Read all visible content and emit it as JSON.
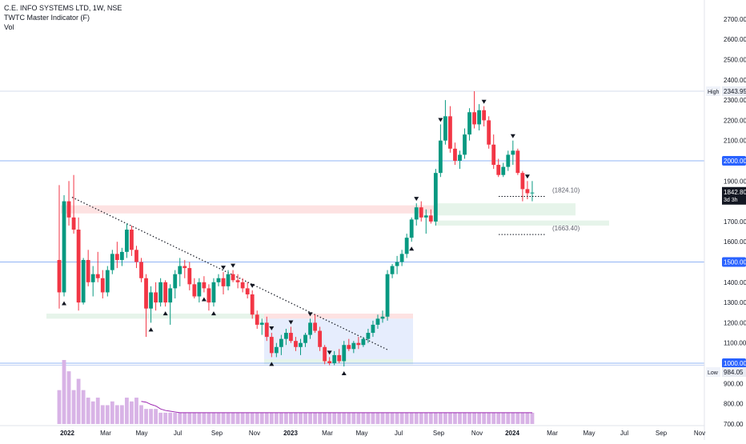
{
  "header": {
    "symbol_line": "C.E. INFO SYSTEMS LTD, 1W, NSE",
    "indicator": "TWTC Master Indicator (F)",
    "volume": "Vol"
  },
  "price_axis": {
    "ticks": [
      "2700.00",
      "2600.00",
      "2500.00",
      "2400.00",
      "2300.00",
      "2200.00",
      "2100.00",
      "1900.00",
      "1800.00",
      "1700.00",
      "1600.00",
      "1400.00",
      "1300.00",
      "1200.00",
      "1100.00",
      "900.00",
      "800.00",
      "700.00"
    ],
    "high_label": "High",
    "high_value": "2343.95",
    "low_label": "Low",
    "low_value": "984.05",
    "level_2000": "2000.00",
    "level_1500": "1500.00",
    "level_1000": "1000.00",
    "last_price": "1842.80",
    "countdown": "3d 3h"
  },
  "time_axis": {
    "labels": [
      "2022",
      "Mar",
      "May",
      "Jul",
      "Sep",
      "Nov",
      "2023",
      "Mar",
      "May",
      "Jul",
      "Sep",
      "Nov",
      "2024",
      "Mar",
      "May",
      "Jul",
      "Sep",
      "Nov"
    ]
  },
  "annotations": {
    "upper_target": "(1824.10)",
    "lower_target": "(1663.40)"
  },
  "colors": {
    "up": "#089981",
    "down": "#f23645",
    "volume": "#d8b3e6",
    "horizontal_level": "#2962ff",
    "support_zone": "#e6f4ea",
    "resistance_zone": "#fde2e2",
    "consolidation_box": "#e3ebfd"
  },
  "chart_data": {
    "type": "candlestick",
    "interval": "1W",
    "ylim": [
      700,
      2750
    ],
    "x_start": "2021-12-20",
    "candles": [
      {
        "o": 1510,
        "h": 1880,
        "l": 1270,
        "c": 1350
      },
      {
        "o": 1350,
        "h": 1830,
        "l": 1330,
        "c": 1800
      },
      {
        "o": 1800,
        "h": 1900,
        "l": 1680,
        "c": 1720
      },
      {
        "o": 1720,
        "h": 1930,
        "l": 1640,
        "c": 1660
      },
      {
        "o": 1660,
        "h": 1720,
        "l": 1260,
        "c": 1300
      },
      {
        "o": 1300,
        "h": 1520,
        "l": 1290,
        "c": 1510
      },
      {
        "o": 1510,
        "h": 1560,
        "l": 1380,
        "c": 1400
      },
      {
        "o": 1400,
        "h": 1480,
        "l": 1330,
        "c": 1440
      },
      {
        "o": 1440,
        "h": 1550,
        "l": 1400,
        "c": 1420
      },
      {
        "o": 1420,
        "h": 1460,
        "l": 1320,
        "c": 1350
      },
      {
        "o": 1350,
        "h": 1480,
        "l": 1330,
        "c": 1460
      },
      {
        "o": 1460,
        "h": 1560,
        "l": 1440,
        "c": 1540
      },
      {
        "o": 1540,
        "h": 1600,
        "l": 1470,
        "c": 1510
      },
      {
        "o": 1510,
        "h": 1570,
        "l": 1480,
        "c": 1550
      },
      {
        "o": 1550,
        "h": 1690,
        "l": 1520,
        "c": 1660
      },
      {
        "o": 1660,
        "h": 1680,
        "l": 1530,
        "c": 1560
      },
      {
        "o": 1560,
        "h": 1580,
        "l": 1470,
        "c": 1500
      },
      {
        "o": 1500,
        "h": 1520,
        "l": 1400,
        "c": 1420
      },
      {
        "o": 1420,
        "h": 1440,
        "l": 1130,
        "c": 1270
      },
      {
        "o": 1270,
        "h": 1380,
        "l": 1200,
        "c": 1350
      },
      {
        "o": 1350,
        "h": 1400,
        "l": 1260,
        "c": 1300
      },
      {
        "o": 1300,
        "h": 1420,
        "l": 1280,
        "c": 1400
      },
      {
        "o": 1400,
        "h": 1410,
        "l": 1280,
        "c": 1300
      },
      {
        "o": 1300,
        "h": 1390,
        "l": 1190,
        "c": 1370
      },
      {
        "o": 1370,
        "h": 1460,
        "l": 1320,
        "c": 1440
      },
      {
        "o": 1440,
        "h": 1520,
        "l": 1380,
        "c": 1480
      },
      {
        "o": 1480,
        "h": 1510,
        "l": 1420,
        "c": 1470
      },
      {
        "o": 1470,
        "h": 1500,
        "l": 1360,
        "c": 1390
      },
      {
        "o": 1390,
        "h": 1420,
        "l": 1320,
        "c": 1330
      },
      {
        "o": 1330,
        "h": 1420,
        "l": 1300,
        "c": 1400
      },
      {
        "o": 1400,
        "h": 1430,
        "l": 1350,
        "c": 1370
      },
      {
        "o": 1370,
        "h": 1390,
        "l": 1260,
        "c": 1300
      },
      {
        "o": 1300,
        "h": 1420,
        "l": 1280,
        "c": 1400
      },
      {
        "o": 1400,
        "h": 1440,
        "l": 1380,
        "c": 1420
      },
      {
        "o": 1420,
        "h": 1450,
        "l": 1340,
        "c": 1380
      },
      {
        "o": 1380,
        "h": 1460,
        "l": 1360,
        "c": 1440
      },
      {
        "o": 1440,
        "h": 1460,
        "l": 1400,
        "c": 1410
      },
      {
        "o": 1410,
        "h": 1440,
        "l": 1370,
        "c": 1400
      },
      {
        "o": 1400,
        "h": 1420,
        "l": 1350,
        "c": 1370
      },
      {
        "o": 1370,
        "h": 1400,
        "l": 1320,
        "c": 1340
      },
      {
        "o": 1340,
        "h": 1360,
        "l": 1220,
        "c": 1240
      },
      {
        "o": 1240,
        "h": 1260,
        "l": 1170,
        "c": 1190
      },
      {
        "o": 1190,
        "h": 1220,
        "l": 1140,
        "c": 1200
      },
      {
        "o": 1200,
        "h": 1230,
        "l": 1110,
        "c": 1130
      },
      {
        "o": 1130,
        "h": 1150,
        "l": 1030,
        "c": 1050
      },
      {
        "o": 1050,
        "h": 1100,
        "l": 1030,
        "c": 1080
      },
      {
        "o": 1080,
        "h": 1140,
        "l": 1040,
        "c": 1120
      },
      {
        "o": 1120,
        "h": 1170,
        "l": 1090,
        "c": 1150
      },
      {
        "o": 1150,
        "h": 1180,
        "l": 1100,
        "c": 1110
      },
      {
        "o": 1110,
        "h": 1130,
        "l": 1060,
        "c": 1080
      },
      {
        "o": 1080,
        "h": 1120,
        "l": 1040,
        "c": 1100
      },
      {
        "o": 1100,
        "h": 1150,
        "l": 1080,
        "c": 1140
      },
      {
        "o": 1140,
        "h": 1220,
        "l": 1120,
        "c": 1200
      },
      {
        "o": 1200,
        "h": 1240,
        "l": 1150,
        "c": 1160
      },
      {
        "o": 1160,
        "h": 1180,
        "l": 1060,
        "c": 1080
      },
      {
        "o": 1080,
        "h": 1090,
        "l": 995,
        "c": 1010
      },
      {
        "o": 1010,
        "h": 1030,
        "l": 990,
        "c": 1000
      },
      {
        "o": 1000,
        "h": 1060,
        "l": 990,
        "c": 1040
      },
      {
        "o": 1040,
        "h": 1070,
        "l": 1000,
        "c": 1010
      },
      {
        "o": 1010,
        "h": 1110,
        "l": 984,
        "c": 1090
      },
      {
        "o": 1090,
        "h": 1120,
        "l": 1060,
        "c": 1070
      },
      {
        "o": 1070,
        "h": 1110,
        "l": 1050,
        "c": 1100
      },
      {
        "o": 1100,
        "h": 1130,
        "l": 1070,
        "c": 1090
      },
      {
        "o": 1090,
        "h": 1130,
        "l": 1080,
        "c": 1120
      },
      {
        "o": 1120,
        "h": 1170,
        "l": 1100,
        "c": 1150
      },
      {
        "o": 1150,
        "h": 1210,
        "l": 1130,
        "c": 1190
      },
      {
        "o": 1190,
        "h": 1240,
        "l": 1170,
        "c": 1220
      },
      {
        "o": 1220,
        "h": 1260,
        "l": 1200,
        "c": 1230
      },
      {
        "o": 1230,
        "h": 1460,
        "l": 1210,
        "c": 1440
      },
      {
        "o": 1440,
        "h": 1490,
        "l": 1420,
        "c": 1480
      },
      {
        "o": 1480,
        "h": 1530,
        "l": 1440,
        "c": 1500
      },
      {
        "o": 1500,
        "h": 1560,
        "l": 1480,
        "c": 1540
      },
      {
        "o": 1540,
        "h": 1640,
        "l": 1520,
        "c": 1620
      },
      {
        "o": 1620,
        "h": 1720,
        "l": 1600,
        "c": 1710
      },
      {
        "o": 1710,
        "h": 1790,
        "l": 1680,
        "c": 1770
      },
      {
        "o": 1770,
        "h": 1800,
        "l": 1700,
        "c": 1720
      },
      {
        "o": 1720,
        "h": 1760,
        "l": 1640,
        "c": 1730
      },
      {
        "o": 1730,
        "h": 1760,
        "l": 1690,
        "c": 1700
      },
      {
        "o": 1700,
        "h": 1960,
        "l": 1680,
        "c": 1940
      },
      {
        "o": 1940,
        "h": 2180,
        "l": 1920,
        "c": 2100
      },
      {
        "o": 2100,
        "h": 2300,
        "l": 2080,
        "c": 2220
      },
      {
        "o": 2220,
        "h": 2270,
        "l": 2040,
        "c": 2060
      },
      {
        "o": 2060,
        "h": 2090,
        "l": 1980,
        "c": 2000
      },
      {
        "o": 2000,
        "h": 2050,
        "l": 1960,
        "c": 2030
      },
      {
        "o": 2030,
        "h": 2160,
        "l": 2010,
        "c": 2130
      },
      {
        "o": 2130,
        "h": 2260,
        "l": 2100,
        "c": 2240
      },
      {
        "o": 2240,
        "h": 2344,
        "l": 2160,
        "c": 2180
      },
      {
        "o": 2180,
        "h": 2280,
        "l": 2150,
        "c": 2250
      },
      {
        "o": 2250,
        "h": 2270,
        "l": 2170,
        "c": 2200
      },
      {
        "o": 2200,
        "h": 2220,
        "l": 2060,
        "c": 2080
      },
      {
        "o": 2080,
        "h": 2130,
        "l": 1960,
        "c": 1980
      },
      {
        "o": 1980,
        "h": 2010,
        "l": 1920,
        "c": 1930
      },
      {
        "o": 1930,
        "h": 1990,
        "l": 1920,
        "c": 1970
      },
      {
        "o": 1970,
        "h": 2050,
        "l": 1950,
        "c": 2030
      },
      {
        "o": 2030,
        "h": 2100,
        "l": 1980,
        "c": 2050
      },
      {
        "o": 2050,
        "h": 2060,
        "l": 1930,
        "c": 1940
      },
      {
        "o": 1940,
        "h": 1950,
        "l": 1800,
        "c": 1860
      },
      {
        "o": 1860,
        "h": 1900,
        "l": 1810,
        "c": 1840
      },
      {
        "o": 1840,
        "h": 1900,
        "l": 1800,
        "c": 1843
      }
    ],
    "volume": [
      9,
      17,
      14,
      9,
      12,
      9,
      7,
      6,
      7,
      5,
      5,
      6,
      5,
      5,
      7,
      6,
      7,
      5,
      4,
      4,
      4,
      3,
      3,
      3,
      3,
      3,
      3,
      3,
      3,
      3,
      3,
      3,
      3,
      3,
      3,
      3,
      3,
      3,
      3,
      3,
      3,
      3,
      3,
      3,
      3,
      3,
      3,
      3,
      3,
      3,
      3,
      3,
      3,
      3,
      3,
      3,
      3,
      3,
      3,
      3,
      3,
      3,
      3,
      3,
      3,
      3,
      3,
      3,
      3,
      3,
      3,
      3,
      3,
      3,
      3,
      3,
      3,
      3,
      3,
      3,
      3,
      3,
      3,
      3,
      3,
      3,
      3,
      3,
      3,
      3,
      3,
      3,
      3,
      3,
      3,
      3,
      3,
      3,
      3
    ],
    "annotations": [
      1824.1,
      1663.4
    ],
    "levels": [
      2000,
      1500,
      1000
    ],
    "high": 2343.95,
    "low": 984.05,
    "last": 1842.8
  }
}
